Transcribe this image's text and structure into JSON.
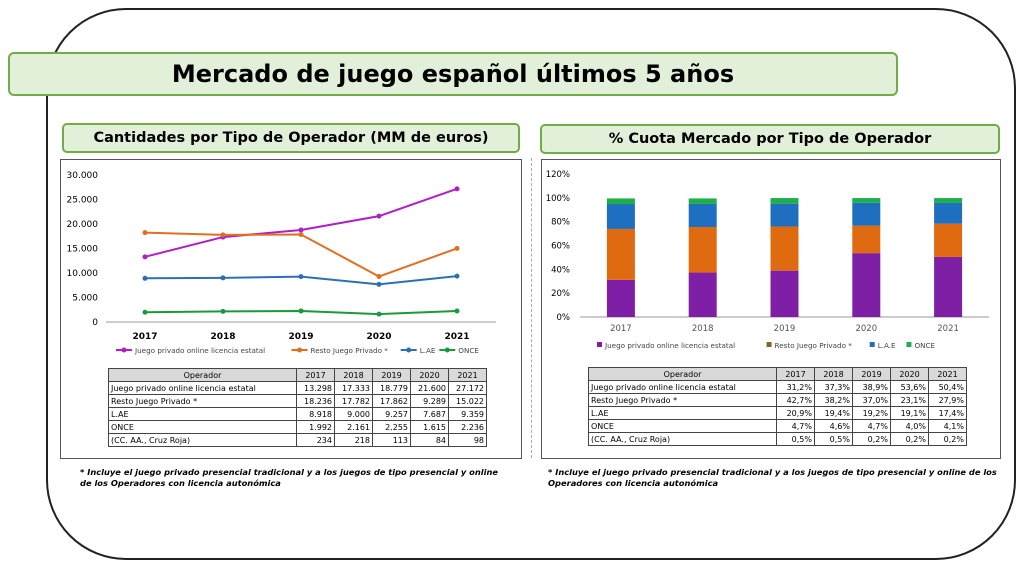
{
  "title": "Mercado de juego español últimos 5 años",
  "left_section": {
    "title": "Cantidades por Tipo de Operador (MM de euros)",
    "footnote": "* Incluye el juego privado presencial tradicional y a los juegos de tipo presencial y online de los Operadores con licencia autonómica"
  },
  "right_section": {
    "title": "% Cuota Mercado por Tipo de Operador",
    "footnote": "* Incluye el juego privado presencial tradicional y a los juegos de tipo presencial y online de los Operadores con licencia autonómica"
  },
  "table_left": {
    "header": [
      "Operador",
      "2017",
      "2018",
      "2019",
      "2020",
      "2021"
    ],
    "rows": [
      [
        "Juego privado online licencia estatal",
        "13.298",
        "17.333",
        "18.779",
        "21.600",
        "27.172"
      ],
      [
        "Resto Juego Privado *",
        "18.236",
        "17.782",
        "17.862",
        "9.289",
        "15.022"
      ],
      [
        "L.AE",
        "8.918",
        "9.000",
        "9.257",
        "7.687",
        "9.359"
      ],
      [
        "ONCE",
        "1.992",
        "2.161",
        "2.255",
        "1.615",
        "2.236"
      ],
      [
        "(CC. AA., Cruz Roja)",
        "234",
        "218",
        "113",
        "84",
        "98"
      ]
    ]
  },
  "table_right": {
    "header": [
      "Operador",
      "2017",
      "2018",
      "2019",
      "2020",
      "2021"
    ],
    "rows": [
      [
        "Juego privado online licencia estatal",
        "31,2%",
        "37,3%",
        "38,9%",
        "53,6%",
        "50,4%"
      ],
      [
        "Resto Juego Privado *",
        "42,7%",
        "38,2%",
        "37,0%",
        "23,1%",
        "27,9%"
      ],
      [
        " L.AE",
        "20,9%",
        "19,4%",
        "19,2%",
        "19,1%",
        "17,4%"
      ],
      [
        "ONCE",
        "4,7%",
        "4,6%",
        "4,7%",
        "4,0%",
        "4,1%"
      ],
      [
        "(CC. AA., Cruz Roja)",
        "0,5%",
        "0,5%",
        "0,2%",
        "0,2%",
        "0,2%"
      ]
    ]
  },
  "chart_data": [
    {
      "type": "line",
      "categories": [
        "2017",
        "2018",
        "2019",
        "2020",
        "2021"
      ],
      "ylim": [
        0,
        30000
      ],
      "yticks": [
        "0",
        "5.000",
        "10.000",
        "15.000",
        "20.000",
        "25.000",
        "30.000"
      ],
      "grid": false,
      "legend_position": "bottom",
      "series": [
        {
          "name": "Juego privado online licencia estatal",
          "color": "#b01ec8",
          "values": [
            13298,
            17333,
            18779,
            21600,
            27172
          ]
        },
        {
          "name": "Resto Juego Privado *",
          "color": "#e07020",
          "values": [
            18236,
            17782,
            17862,
            9289,
            15022
          ]
        },
        {
          "name": "L.AE",
          "color": "#2c6fb7",
          "values": [
            8918,
            9000,
            9257,
            7687,
            9359
          ]
        },
        {
          "name": "ONCE",
          "color": "#1a9a3a",
          "values": [
            1992,
            2161,
            2255,
            1615,
            2236
          ]
        }
      ]
    },
    {
      "type": "bar",
      "stacked": true,
      "categories": [
        "2017",
        "2018",
        "2019",
        "2020",
        "2021"
      ],
      "ylim": [
        0,
        120
      ],
      "yticks": [
        "0%",
        "20%",
        "40%",
        "60%",
        "80%",
        "100%",
        "120%"
      ],
      "grid": false,
      "legend_position": "bottom",
      "series": [
        {
          "name": "Juego privado online licencia estatal",
          "color": "#7f1fa5",
          "values": [
            31.2,
            37.3,
            38.9,
            53.6,
            50.4
          ]
        },
        {
          "name": "Resto Juego Privado *",
          "color": "#e06a10",
          "values": [
            42.7,
            38.2,
            37.0,
            23.1,
            27.9
          ]
        },
        {
          "name": "L.A.E",
          "color": "#1f6fc0",
          "values": [
            20.9,
            19.4,
            19.2,
            19.1,
            17.4
          ]
        },
        {
          "name": "ONCE",
          "color": "#1db04a",
          "values": [
            4.7,
            4.6,
            4.7,
            4.0,
            4.1
          ]
        }
      ]
    }
  ]
}
